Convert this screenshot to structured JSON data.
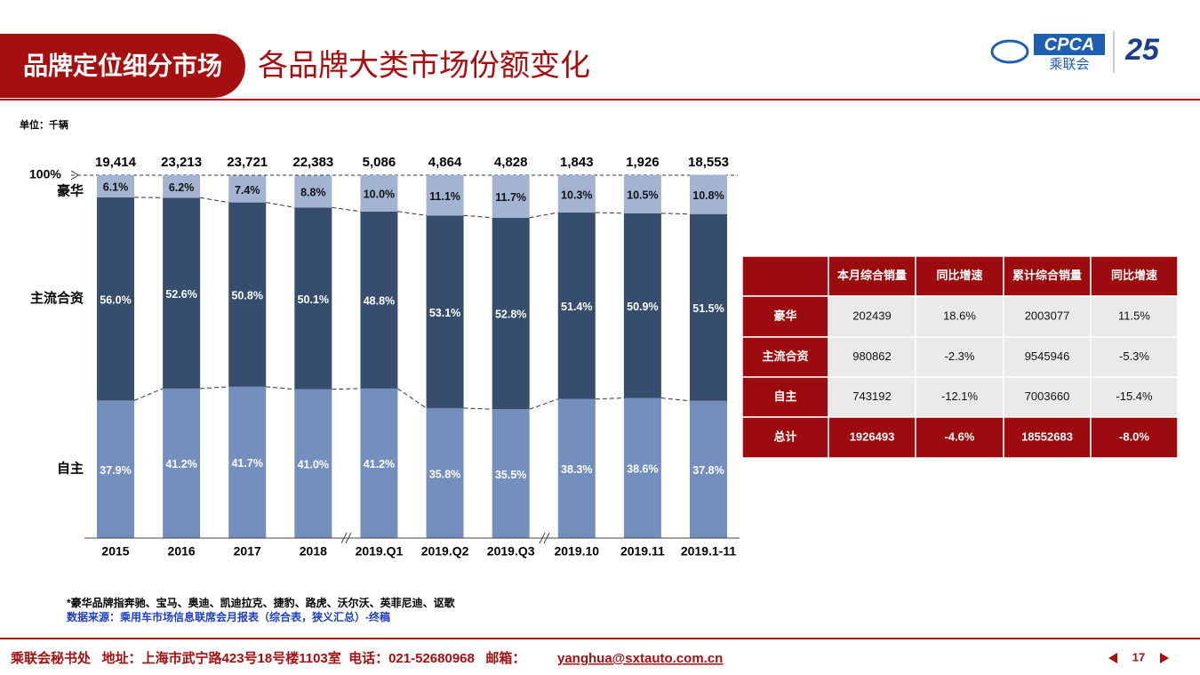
{
  "header": {
    "section": "品牌定位细分市场",
    "title": "各品牌大类市场份额变化",
    "logo": {
      "mark": "CPCA",
      "name": "乘联会",
      "anniversary": "25"
    }
  },
  "unit": "单位：千辆",
  "chart_data": {
    "type": "bar",
    "stacked": true,
    "categories": [
      "2015",
      "2016",
      "2017",
      "2018",
      "2019.Q1",
      "2019.Q2",
      "2019.Q3",
      "2019.10",
      "2019.11",
      "2019.1-11"
    ],
    "series": [
      {
        "name": "自主",
        "color": "#748fbe",
        "values": [
          37.9,
          41.2,
          41.7,
          41.0,
          41.2,
          35.8,
          35.5,
          38.3,
          38.6,
          37.8
        ],
        "value_labels": [
          "37.9%",
          "41.2%",
          "41.7%",
          "41.0%",
          "41.2%",
          "35.8%",
          "35.5%",
          "38.3%",
          "38.6%",
          "37.8%"
        ]
      },
      {
        "name": "主流合资",
        "color": "#364d6d",
        "values": [
          56.0,
          52.6,
          50.8,
          50.1,
          48.8,
          53.1,
          52.8,
          51.4,
          50.9,
          51.5
        ],
        "value_labels": [
          "56.0%",
          "52.6%",
          "50.8%",
          "50.1%",
          "48.8%",
          "53.1%",
          "52.8%",
          "51.4%",
          "50.9%",
          "51.5%"
        ]
      },
      {
        "name": "豪华",
        "color": "#a3b4d3",
        "values": [
          6.1,
          6.2,
          7.4,
          8.8,
          10.0,
          11.1,
          11.7,
          10.3,
          10.5,
          10.8
        ],
        "value_labels": [
          "6.1%",
          "6.2%",
          "7.4%",
          "8.8%",
          "10.0%",
          "11.1%",
          "11.7%",
          "10.3%",
          "10.5%",
          "10.8%"
        ]
      }
    ],
    "totals": {
      "values": [
        19414,
        23213,
        23721,
        22383,
        5086,
        4864,
        4828,
        1843,
        1926,
        18553
      ],
      "value_labels": [
        "19,414",
        "23,213",
        "23,721",
        "22,383",
        "5,086",
        "4,864",
        "4,828",
        "1,843",
        "1,926",
        "18,553"
      ]
    },
    "ylim": [
      0,
      100
    ],
    "yticks": [
      {
        "value": 100,
        "label": "100%"
      }
    ]
  },
  "table": {
    "header": [
      "本月综合销量",
      "同比增速",
      "累计综合销量",
      "同比增速"
    ],
    "rows": [
      [
        "豪华",
        "202439",
        "18.6%",
        "2003077",
        "11.5%"
      ],
      [
        "主流合资",
        "980862",
        "-2.3%",
        "9545946",
        "-5.3%"
      ],
      [
        "自主",
        "743192",
        "-12.1%",
        "7003660",
        "-15.4%"
      ],
      [
        "总计",
        "1926493",
        "-4.6%",
        "18552683",
        "-8.0%"
      ]
    ]
  },
  "notes": [
    "*豪华品牌指奔驰、宝马、奥迪、凯迪拉克、捷豹、路虎、沃尔沃、英菲尼迪、讴歌",
    "数据来源：乘用车市场信息联席会月报表（综合表，狭义汇总）-终稿"
  ],
  "footer": {
    "contact": "乘联会秘书处   地址：上海市武宁路423号18号楼1103室  电话：021-52680968   邮箱：",
    "email": "yanghua@sxtauto.com.cn",
    "page": "17"
  }
}
